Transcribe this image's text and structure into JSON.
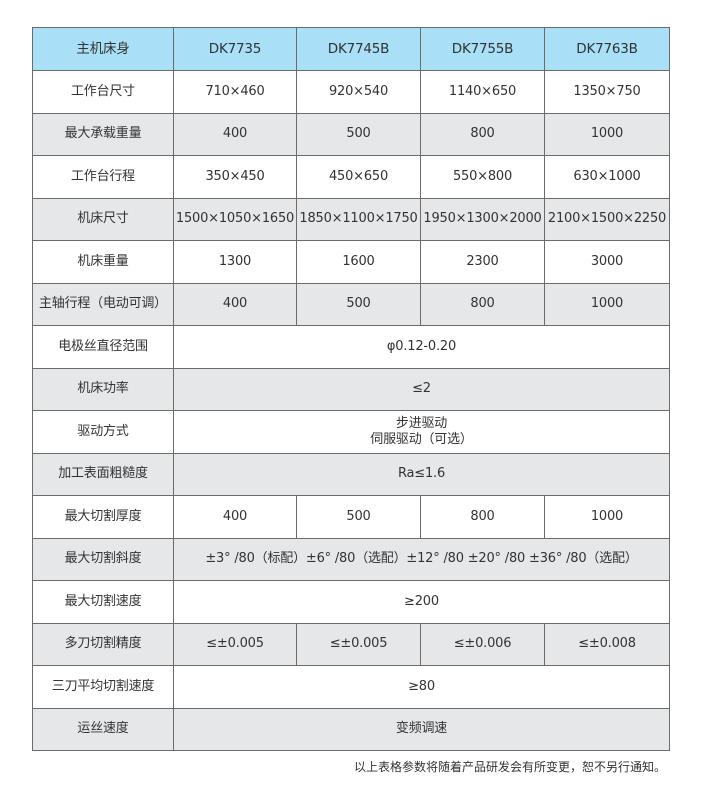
{
  "header": [
    "主机床身",
    "DK7735",
    "DK7745B",
    "DK7755B",
    "DK7763B"
  ],
  "rows": [
    {
      "label": "工作台尺寸",
      "values": [
        "710×460",
        "920×540",
        "1140×650",
        "1350×750"
      ]
    },
    {
      "label": "最大承载重量",
      "values": [
        "400",
        "500",
        "800",
        "1000"
      ]
    },
    {
      "label": "工作台行程",
      "values": [
        "350×450",
        "450×650",
        "550×800",
        "630×1000"
      ]
    },
    {
      "label": "机床尺寸",
      "values": [
        "1500×1050×1650",
        "1850×1100×1750",
        "1950×1300×2000",
        "2100×1500×2250"
      ]
    },
    {
      "label": "机床重量",
      "values": [
        "1300",
        "1600",
        "2300",
        "3000"
      ]
    },
    {
      "label": "主轴行程（电动可调）",
      "values": [
        "400",
        "500",
        "800",
        "1000"
      ]
    },
    {
      "label": "电极丝直径范围",
      "span": "φ0.12-0.20"
    },
    {
      "label": "机床功率",
      "span": "≤2"
    },
    {
      "label": "驱动方式",
      "span": "步进驱动",
      "span2": "伺服驱动（可选）"
    },
    {
      "label": "加工表面粗糙度",
      "span": "Ra≤1.6"
    },
    {
      "label": "最大切割厚度",
      "values": [
        "400",
        "500",
        "800",
        "1000"
      ]
    },
    {
      "label": "最大切割斜度",
      "span": "±3° /80（标配）±6° /80（选配）±12° /80 ±20° /80 ±36° /80（选配）"
    },
    {
      "label": "最大切割速度",
      "span": "≥200"
    },
    {
      "label": "多刀切割精度",
      "values": [
        "≤±0.005",
        "≤±0.005",
        "≤±0.006",
        "≤±0.008"
      ]
    },
    {
      "label": "三刀平均切割速度",
      "span": "≥80"
    },
    {
      "label": "运丝速度",
      "span": "变频调速"
    }
  ],
  "footnote": "以上表格参数将随着产品研发会有所变更，恕不另行通知。",
  "colors": {
    "header_bg": "#a9dff7",
    "alt_row_bg": "#e6e7e9",
    "border": "#6b6b6b"
  }
}
